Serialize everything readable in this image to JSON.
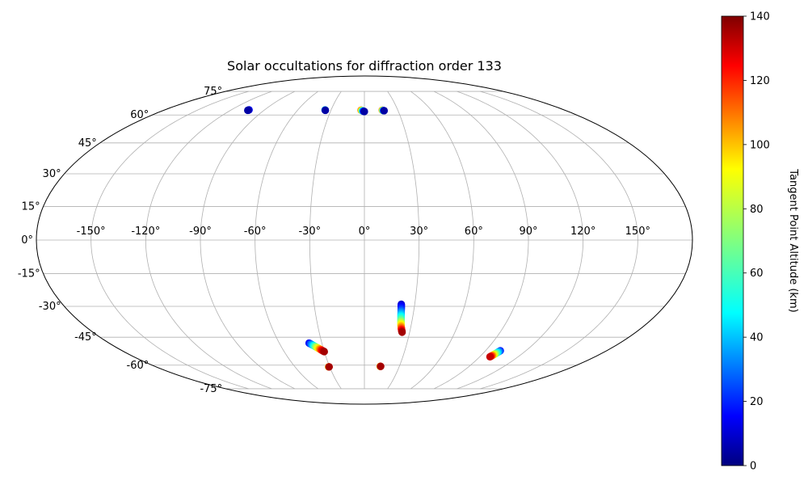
{
  "chart_data": {
    "type": "scatter",
    "projection": "mollweide",
    "title": "Solar occultations for diffraction order 133",
    "xlabel": "",
    "ylabel": "",
    "grid": true,
    "longitude_ticks": [
      "-150°",
      "-120°",
      "-90°",
      "-60°",
      "-30°",
      "0°",
      "30°",
      "60°",
      "90°",
      "120°",
      "150°"
    ],
    "latitude_ticks": [
      "75°",
      "60°",
      "45°",
      "30°",
      "15°",
      "0°",
      "-15°",
      "-30°",
      "-45°",
      "-60°",
      "-75°"
    ],
    "colorbar": {
      "label": "Tangent Point Altitude (km)",
      "colormap": "jet",
      "min": 0,
      "max": 140,
      "ticks": [
        "0",
        "20",
        "40",
        "60",
        "80",
        "100",
        "120",
        "140"
      ]
    },
    "series": [
      {
        "points": [
          {
            "lon": -104,
            "lat": 63.0,
            "alt": 20
          },
          {
            "lon": -104.5,
            "lat": 62.7,
            "alt": 5
          }
        ]
      },
      {
        "points": [
          {
            "lon": -35.5,
            "lat": 63.0,
            "alt": 70
          },
          {
            "lon": -35,
            "lat": 62.7,
            "alt": 5
          }
        ]
      },
      {
        "points": [
          {
            "lon": -3.0,
            "lat": 62.8,
            "alt": 110
          },
          {
            "lon": -2.3,
            "lat": 62.6,
            "alt": 90
          },
          {
            "lon": -1.6,
            "lat": 62.4,
            "alt": 60
          },
          {
            "lon": -0.9,
            "lat": 62.2,
            "alt": 35
          },
          {
            "lon": 0.0,
            "lat": 62.0,
            "alt": 5
          }
        ]
      },
      {
        "points": [
          {
            "lon": 16.0,
            "lat": 62.8,
            "alt": 110
          },
          {
            "lon": 16.8,
            "lat": 62.6,
            "alt": 60
          },
          {
            "lon": 17.6,
            "lat": 62.5,
            "alt": 5
          }
        ]
      },
      {
        "points": [
          {
            "lon": 22.0,
            "lat": -29.0,
            "alt": 10
          },
          {
            "lon": 22.3,
            "lat": -31.5,
            "alt": 25
          },
          {
            "lon": 22.6,
            "lat": -34.0,
            "alt": 45
          },
          {
            "lon": 23.0,
            "lat": -36.5,
            "alt": 65
          },
          {
            "lon": 23.5,
            "lat": -39.0,
            "alt": 90
          },
          {
            "lon": 24.2,
            "lat": -41.0,
            "alt": 115
          },
          {
            "lon": 25.0,
            "lat": -42.5,
            "alt": 135
          }
        ]
      },
      {
        "points": [
          {
            "lon": -39.0,
            "lat": -48.0,
            "alt": 15
          },
          {
            "lon": -37.0,
            "lat": -49.0,
            "alt": 40
          },
          {
            "lon": -35.0,
            "lat": -50.0,
            "alt": 70
          },
          {
            "lon": -33.0,
            "lat": -51.0,
            "alt": 95
          },
          {
            "lon": -31.5,
            "lat": -51.8,
            "alt": 120
          },
          {
            "lon": -30.0,
            "lat": -52.5,
            "alt": 135
          }
        ]
      },
      {
        "points": [
          {
            "lon": -31.0,
            "lat": -61.0,
            "alt": 70
          },
          {
            "lon": -30.5,
            "lat": -61.0,
            "alt": 135
          }
        ]
      },
      {
        "points": [
          {
            "lon": 13.5,
            "lat": -60.7,
            "alt": 70
          },
          {
            "lon": 14.0,
            "lat": -60.7,
            "alt": 135
          }
        ]
      },
      {
        "points": [
          {
            "lon": 101.0,
            "lat": -52.0,
            "alt": 20
          },
          {
            "lon": 100.0,
            "lat": -53.2,
            "alt": 55
          },
          {
            "lon": 99.0,
            "lat": -54.3,
            "alt": 90
          },
          {
            "lon": 98.0,
            "lat": -55.3,
            "alt": 130
          }
        ]
      }
    ]
  }
}
